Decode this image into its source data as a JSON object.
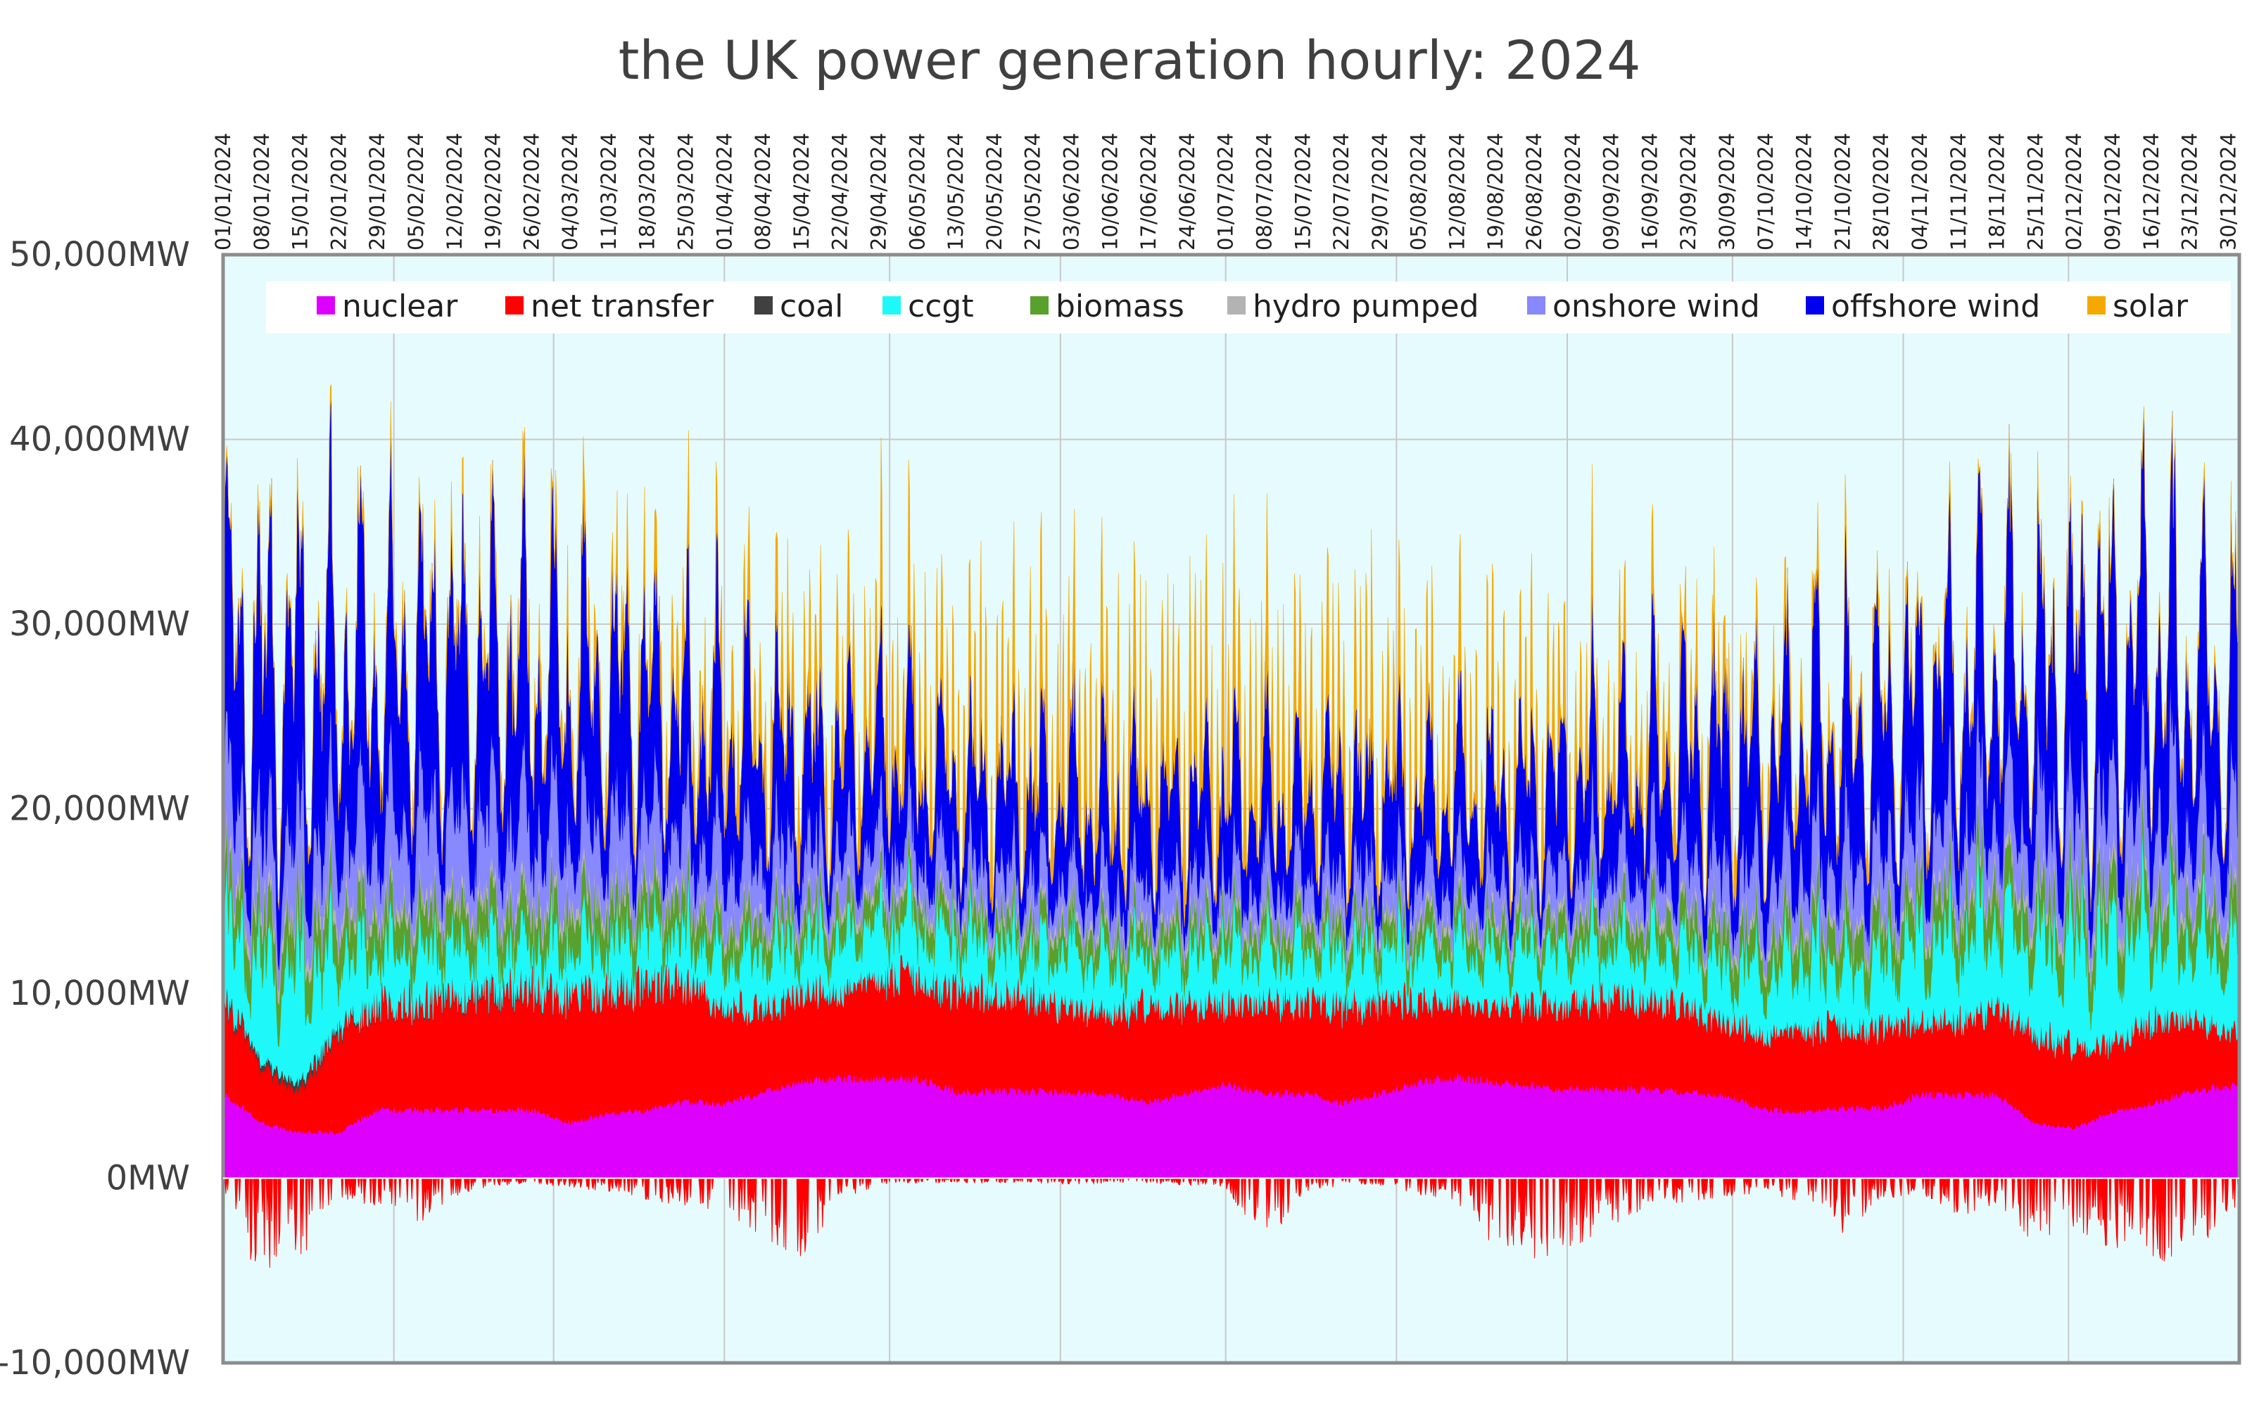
{
  "chart_data": {
    "type": "area",
    "stacked": true,
    "title": "the UK power generation hourly:  2024",
    "ylabel_unit": "MW",
    "ylim": [
      -10000,
      50000
    ],
    "y_ticks": [
      {
        "value": 50000,
        "label": "50,000MW"
      },
      {
        "value": 40000,
        "label": "40,000MW"
      },
      {
        "value": 30000,
        "label": "30,000MW"
      },
      {
        "value": 20000,
        "label": "20,000MW"
      },
      {
        "value": 10000,
        "label": "10,000MW"
      },
      {
        "value": 0,
        "label": "0MW"
      },
      {
        "value": -10000,
        "label": "-10,000MW"
      }
    ],
    "x_range_days": [
      0,
      366
    ],
    "x_ticks": [
      "01/01/2024",
      "08/01/2024",
      "15/01/2024",
      "22/01/2024",
      "29/01/2024",
      "05/02/2024",
      "12/02/2024",
      "19/02/2024",
      "26/02/2024",
      "04/03/2024",
      "11/03/2024",
      "18/03/2024",
      "25/03/2024",
      "01/04/2024",
      "08/04/2024",
      "15/04/2024",
      "22/04/2024",
      "29/04/2024",
      "06/05/2024",
      "13/05/2024",
      "20/05/2024",
      "27/05/2024",
      "03/06/2024",
      "10/06/2024",
      "17/06/2024",
      "24/06/2024",
      "01/07/2024",
      "08/07/2024",
      "15/07/2024",
      "22/07/2024",
      "29/07/2024",
      "05/08/2024",
      "12/08/2024",
      "19/08/2024",
      "26/08/2024",
      "02/09/2024",
      "09/09/2024",
      "16/09/2024",
      "23/09/2024",
      "30/09/2024",
      "07/10/2024",
      "14/10/2024",
      "21/10/2024",
      "28/10/2024",
      "04/11/2024",
      "11/11/2024",
      "18/11/2024",
      "25/11/2024",
      "02/12/2024",
      "09/12/2024",
      "16/12/2024",
      "23/12/2024",
      "30/12/2024"
    ],
    "month_gridlines": [
      "01/02/2024",
      "01/03/2024",
      "01/04/2024",
      "01/05/2024",
      "01/06/2024",
      "01/07/2024",
      "01/08/2024",
      "01/09/2024",
      "01/10/2024",
      "01/11/2024",
      "01/12/2024"
    ],
    "legend_position": "top",
    "series_note": "Approximate weekly levels (MW) read from the stacked hourly chart, one value per week starting 01/01/2024",
    "series": [
      {
        "name": "nuclear",
        "color": "#dd00ff",
        "values": [
          4600,
          3000,
          2500,
          2500,
          3700,
          3700,
          3700,
          3700,
          3700,
          3000,
          3500,
          3700,
          4200,
          4000,
          4700,
          5300,
          5400,
          5400,
          5400,
          4700,
          4700,
          4700,
          4600,
          4600,
          4100,
          4600,
          5100,
          4600,
          4600,
          4100,
          4600,
          5200,
          5500,
          5200,
          5000,
          4800,
          4800,
          4800,
          4700,
          4500,
          3700,
          3600,
          3800,
          3800,
          4500,
          4500,
          4500,
          3000,
          2700,
          3600,
          4000,
          4700,
          5000
        ]
      },
      {
        "name": "net transfer",
        "color": "#ff0000",
        "values": [
          5200,
          3000,
          2200,
          5500,
          5800,
          5800,
          6000,
          6400,
          6500,
          6800,
          6900,
          6800,
          6300,
          5500,
          4500,
          5000,
          4700,
          5500,
          5500,
          5500,
          5200,
          5200,
          4600,
          4600,
          5100,
          4800,
          4300,
          5000,
          5000,
          5200,
          5000,
          4500,
          4200,
          4200,
          4400,
          4800,
          5000,
          4900,
          4600,
          4100,
          4100,
          4500,
          4400,
          4400,
          4000,
          4000,
          4800,
          5000,
          4300,
          3700,
          4500,
          4000,
          3000
        ]
      },
      {
        "name": "coal",
        "color": "#404040",
        "values": [
          200,
          300,
          400,
          200,
          100,
          100,
          100,
          100,
          100,
          0,
          0,
          0,
          0,
          0,
          0,
          0,
          0,
          0,
          0,
          0,
          0,
          0,
          0,
          0,
          0,
          0,
          0,
          0,
          0,
          0,
          0,
          0,
          0,
          0,
          0,
          0,
          0,
          0,
          0,
          0,
          0,
          0,
          0,
          0,
          0,
          0,
          0,
          0,
          0,
          0,
          0,
          0,
          0
        ]
      },
      {
        "name": "ccgt",
        "color": "#1ef8f8",
        "values": [
          6000,
          8000,
          9000,
          6000,
          4500,
          4500,
          4000,
          3800,
          3500,
          4000,
          4200,
          4000,
          4000,
          4200,
          4800,
          4300,
          4500,
          4500,
          4600,
          4200,
          4200,
          4200,
          4500,
          4300,
          4100,
          4300,
          4700,
          4300,
          4300,
          4500,
          4400,
          4300,
          4300,
          4300,
          4300,
          4400,
          4400,
          4400,
          4600,
          4700,
          5300,
          5800,
          5200,
          5200,
          6800,
          7000,
          7000,
          7500,
          8500,
          8500,
          7500,
          6500,
          6500
        ]
      },
      {
        "name": "biomass",
        "color": "#5aa02c",
        "values": [
          2200,
          2300,
          2300,
          2200,
          2000,
          2000,
          2000,
          2000,
          2000,
          2000,
          2000,
          2000,
          1800,
          1700,
          1600,
          1500,
          1500,
          1400,
          1400,
          1400,
          1400,
          1400,
          1400,
          1400,
          1400,
          1400,
          1400,
          1400,
          1400,
          1400,
          1400,
          1400,
          1400,
          1400,
          1400,
          1500,
          1500,
          1600,
          1700,
          1800,
          1800,
          1900,
          2000,
          2000,
          2100,
          2200,
          2200,
          2200,
          2200,
          2200,
          2200,
          2200,
          2100
        ]
      },
      {
        "name": "hydro pumped",
        "color": "#b3b3b3",
        "values": [
          700,
          700,
          700,
          700,
          600,
          600,
          600,
          600,
          600,
          600,
          600,
          600,
          500,
          500,
          500,
          500,
          500,
          500,
          500,
          500,
          500,
          500,
          500,
          500,
          500,
          500,
          500,
          500,
          500,
          500,
          500,
          500,
          500,
          500,
          500,
          500,
          500,
          500,
          500,
          500,
          500,
          500,
          500,
          500,
          600,
          600,
          600,
          600,
          700,
          700,
          700,
          600,
          600
        ]
      },
      {
        "name": "onshore wind",
        "color": "#8888ff",
        "values": [
          5000,
          4500,
          4800,
          5200,
          5000,
          5500,
          5200,
          5300,
          5000,
          4800,
          4500,
          4200,
          4000,
          4300,
          3800,
          3500,
          3200,
          2800,
          2600,
          2500,
          2400,
          2500,
          2500,
          2400,
          2500,
          2400,
          2300,
          2400,
          2500,
          2600,
          2500,
          2400,
          2500,
          2600,
          2700,
          2800,
          3000,
          3100,
          3300,
          3500,
          3700,
          3600,
          3800,
          4000,
          3900,
          4100,
          4400,
          4500,
          4700,
          5000,
          5000,
          4800,
          4700
        ]
      },
      {
        "name": "offshore wind",
        "color": "#0000ee",
        "values": [
          11500,
          13000,
          13500,
          12500,
          12000,
          12000,
          11800,
          11500,
          11000,
          10800,
          10200,
          9500,
          8500,
          9000,
          8000,
          7500,
          7000,
          6800,
          6500,
          6000,
          5900,
          6000,
          6200,
          6000,
          6100,
          6000,
          5900,
          6100,
          6200,
          6300,
          6200,
          6000,
          6100,
          6300,
          6400,
          6600,
          7000,
          7500,
          8000,
          8500,
          9000,
          9200,
          9500,
          9800,
          9700,
          10000,
          11000,
          11300,
          11500,
          11800,
          11600,
          11000,
          10500
        ]
      },
      {
        "name": "solar",
        "color": "#f5a800",
        "values": [
          400,
          400,
          500,
          600,
          800,
          900,
          1100,
          1300,
          1600,
          1900,
          2200,
          2500,
          2900,
          3200,
          3600,
          4000,
          4300,
          4600,
          4900,
          5100,
          5300,
          5400,
          5600,
          5700,
          5800,
          5800,
          5700,
          5600,
          5500,
          5400,
          5300,
          5100,
          4900,
          4700,
          4400,
          4100,
          3800,
          3400,
          3000,
          2600,
          2200,
          1800,
          1500,
          1200,
          900,
          700,
          600,
          500,
          400,
          400,
          400,
          400,
          400
        ]
      },
      {
        "name": "net transfer (export)",
        "legend": false,
        "color": "#ff0000",
        "values": [
          -800,
          -4500,
          -3500,
          -800,
          -1200,
          -2000,
          -800,
          -300,
          -300,
          -400,
          -600,
          -900,
          -1200,
          -1400,
          -2500,
          -3500,
          -900,
          -400,
          -200,
          -200,
          -200,
          -200,
          -300,
          -200,
          -200,
          -300,
          -500,
          -3000,
          -700,
          -300,
          -300,
          -700,
          -1000,
          -3000,
          -3500,
          -3000,
          -2000,
          -1200,
          -1000,
          -800,
          -600,
          -1200,
          -2300,
          -1000,
          -600,
          -1800,
          -1200,
          -2800,
          -2200,
          -3000,
          -4000,
          -3500,
          -1500
        ]
      }
    ]
  }
}
